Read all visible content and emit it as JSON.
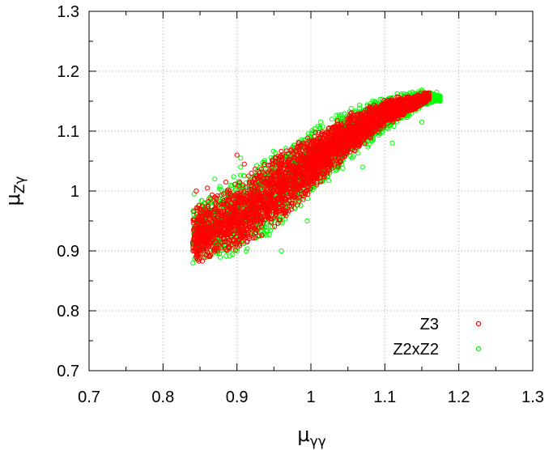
{
  "chart_data": {
    "type": "scatter",
    "title": "",
    "xlabel": "μγγ",
    "xlabel_main": "μ",
    "xlabel_sub": "γγ",
    "ylabel": "μZγ",
    "ylabel_main": "μ",
    "ylabel_sub": "Zγ",
    "xlim": [
      0.7,
      1.3
    ],
    "ylim": [
      0.7,
      1.3
    ],
    "xticks": [
      "0.7",
      "0.8",
      "0.9",
      "1",
      "1.1",
      "1.2",
      "1.3"
    ],
    "yticks": [
      "0.7",
      "0.8",
      "0.9",
      "1",
      "1.1",
      "1.2",
      "1.3"
    ],
    "grid": true,
    "legend_position": "bottom-right",
    "marker": "open-circle",
    "series": [
      {
        "name": "Z2xZ2",
        "color": "#00ff00",
        "band": {
          "x_range": [
            0.84,
            1.175
          ],
          "x": [
            0.84,
            0.9,
            0.95,
            1.0,
            1.05,
            1.1,
            1.15,
            1.175
          ],
          "y_low": [
            0.875,
            0.885,
            0.925,
            0.985,
            1.045,
            1.095,
            1.14,
            1.15
          ],
          "y_high": [
            0.99,
            1.03,
            1.07,
            1.11,
            1.14,
            1.16,
            1.17,
            1.16
          ]
        },
        "outliers": [
          {
            "x": 0.842,
            "y": 0.995
          },
          {
            "x": 0.848,
            "y": 0.975
          },
          {
            "x": 0.87,
            "y": 1.02
          },
          {
            "x": 0.905,
            "y": 1.04
          },
          {
            "x": 0.905,
            "y": 1.055
          },
          {
            "x": 0.96,
            "y": 0.9
          },
          {
            "x": 1.07,
            "y": 1.04
          },
          {
            "x": 1.15,
            "y": 1.115
          },
          {
            "x": 1.17,
            "y": 1.165
          },
          {
            "x": 1.175,
            "y": 1.15
          },
          {
            "x": 0.995,
            "y": 0.95
          },
          {
            "x": 1.11,
            "y": 1.08
          }
        ]
      },
      {
        "name": "Z3",
        "color": "#ff0000",
        "band": {
          "x_range": [
            0.84,
            1.16
          ],
          "x": [
            0.84,
            0.9,
            0.95,
            1.0,
            1.05,
            1.1,
            1.16
          ],
          "y_low": [
            0.875,
            0.89,
            0.935,
            0.995,
            1.055,
            1.105,
            1.15
          ],
          "y_high": [
            0.975,
            1.02,
            1.06,
            1.1,
            1.13,
            1.155,
            1.165
          ]
        },
        "outliers": [
          {
            "x": 0.845,
            "y": 1.0
          },
          {
            "x": 0.86,
            "y": 1.005
          },
          {
            "x": 0.9,
            "y": 1.06
          },
          {
            "x": 0.885,
            "y": 1.015
          },
          {
            "x": 0.91,
            "y": 1.045
          },
          {
            "x": 0.87,
            "y": 0.99
          }
        ]
      }
    ]
  }
}
